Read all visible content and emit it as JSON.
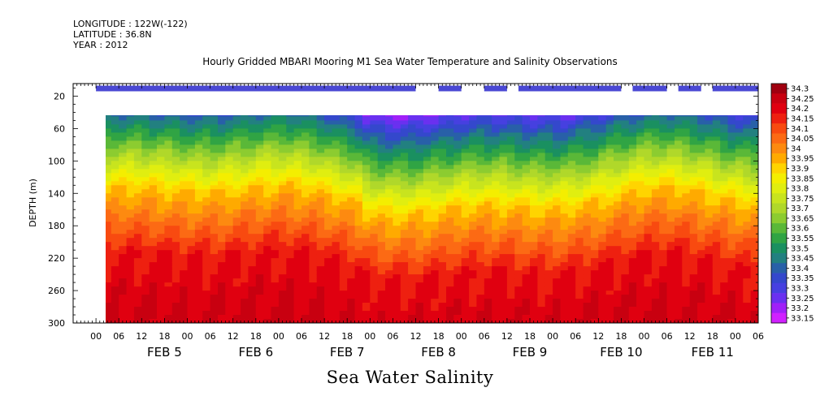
{
  "header": {
    "longitude": "LONGITUDE : 122W(-122)",
    "latitude": "LATITUDE : 36.8N",
    "year": "YEAR : 2012"
  },
  "chart_data": {
    "type": "heatmap",
    "title": "Hourly Gridded MBARI Mooring M1 Sea Water Temperature and Salinity Observations",
    "bottom_title": "Sea Water Salinity",
    "ylabel": "DEPTH (m)",
    "ylim": [
      300,
      0
    ],
    "y_ticks": [
      20,
      60,
      100,
      140,
      180,
      220,
      260,
      300
    ],
    "x_hour_ticks": [
      "00",
      "06",
      "12",
      "18",
      "00",
      "06",
      "12",
      "18",
      "00",
      "06",
      "12",
      "18",
      "00",
      "06",
      "12",
      "18",
      "00",
      "06",
      "12",
      "18",
      "00",
      "06",
      "12",
      "18",
      "00",
      "06",
      "12",
      "18",
      "00",
      "06"
    ],
    "x_day_labels": [
      "FEB 5",
      "FEB 6",
      "FEB 7",
      "FEB 8",
      "FEB 9",
      "FEB 10",
      "FEB 11"
    ],
    "colorbar": {
      "levels": [
        "34.3",
        "34.25",
        "34.2",
        "34.15",
        "34.1",
        "34.05",
        "34",
        "33.95",
        "33.9",
        "33.85",
        "33.8",
        "33.75",
        "33.7",
        "33.65",
        "33.6",
        "33.55",
        "33.5",
        "33.45",
        "33.4",
        "33.35",
        "33.3",
        "33.25",
        "33.2",
        "33.15"
      ],
      "colors": [
        "#a00010",
        "#c80010",
        "#e00010",
        "#ee2010",
        "#f84a10",
        "#fc6a14",
        "#fd8a10",
        "#ffaa00",
        "#ffd400",
        "#f4ee00",
        "#e0ee10",
        "#c8e41e",
        "#b0d82a",
        "#8ccc30",
        "#5ab838",
        "#30a444",
        "#1a9060",
        "#228080",
        "#2860a8",
        "#3448cc",
        "#4640e0",
        "#6a30f0",
        "#a020f8",
        "#d020ff"
      ]
    },
    "surface_band_gaps": [
      [
        "FEB 7 18",
        "FEB 8 00"
      ],
      [
        "FEB 8 06",
        "FEB 8 12"
      ],
      [
        "FEB 8 18",
        "FEB 8 21"
      ],
      [
        "FEB 10 00",
        "FEB 10 03"
      ],
      [
        "FEB 10 12",
        "FEB 10 15"
      ],
      [
        "FEB 10 21",
        "FEB 11 00"
      ]
    ],
    "data_start": "FEB 4 06",
    "data_end": "FEB 11 12"
  }
}
